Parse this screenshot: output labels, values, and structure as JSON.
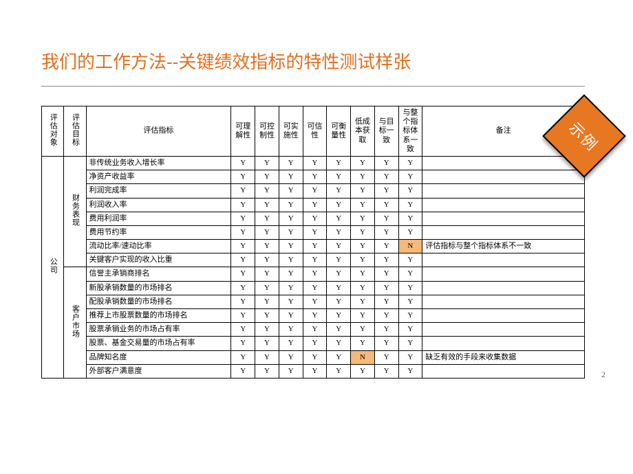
{
  "title": "我们的工作方法--关键绩效指标的特性测试样张",
  "badge": "示例",
  "pagenum": "2",
  "headers": {
    "obj": "评估对象",
    "dim": "评估目标",
    "ind": "评估指标",
    "c1": "可理解性",
    "c2": "可控制性",
    "c3": "可实施性",
    "c4": "可信性",
    "c5": "可衡量性",
    "c6": "低成本获取",
    "c7": "与目标一致",
    "c8": "与整个指标体系一致",
    "note": "备注"
  },
  "obj_label": "公司",
  "dims": {
    "fin": "财务表现",
    "cust": "客户市场"
  },
  "rows": [
    {
      "dim": "fin",
      "ind": "非传统业务收入增长率",
      "v": [
        "Y",
        "Y",
        "Y",
        "Y",
        "Y",
        "Y",
        "Y",
        "Y"
      ],
      "hl": null,
      "note": ""
    },
    {
      "dim": "fin",
      "ind": "净资产收益率",
      "v": [
        "Y",
        "Y",
        "Y",
        "Y",
        "Y",
        "Y",
        "Y",
        "Y"
      ],
      "hl": null,
      "note": ""
    },
    {
      "dim": "fin",
      "ind": "利润完成率",
      "v": [
        "Y",
        "Y",
        "Y",
        "Y",
        "Y",
        "Y",
        "Y",
        "Y"
      ],
      "hl": null,
      "note": ""
    },
    {
      "dim": "fin",
      "ind": "利润收入率",
      "v": [
        "Y",
        "Y",
        "Y",
        "Y",
        "Y",
        "Y",
        "Y",
        "Y"
      ],
      "hl": null,
      "note": ""
    },
    {
      "dim": "fin",
      "ind": "费用利润率",
      "v": [
        "Y",
        "Y",
        "Y",
        "Y",
        "Y",
        "Y",
        "Y",
        "Y"
      ],
      "hl": null,
      "note": ""
    },
    {
      "dim": "fin",
      "ind": "费用节约率",
      "v": [
        "Y",
        "Y",
        "Y",
        "Y",
        "Y",
        "Y",
        "Y",
        "Y"
      ],
      "hl": null,
      "note": ""
    },
    {
      "dim": "fin",
      "ind": "流动比率/速动比率",
      "v": [
        "Y",
        "Y",
        "Y",
        "Y",
        "Y",
        "Y",
        "Y",
        "N"
      ],
      "hl": 7,
      "note": "评估指标与整个指标体系不一致"
    },
    {
      "dim": "fin",
      "ind": "关键客户实现的收入比重",
      "v": [
        "Y",
        "Y",
        "Y",
        "Y",
        "Y",
        "Y",
        "Y",
        "Y"
      ],
      "hl": null,
      "note": ""
    },
    {
      "dim": "cust",
      "ind": "信誉主承销商排名",
      "v": [
        "Y",
        "Y",
        "Y",
        "Y",
        "Y",
        "Y",
        "Y",
        "Y"
      ],
      "hl": null,
      "note": ""
    },
    {
      "dim": "cust",
      "ind": "新股承销数量的市场排名",
      "v": [
        "Y",
        "Y",
        "Y",
        "Y",
        "Y",
        "Y",
        "Y",
        "Y"
      ],
      "hl": null,
      "note": ""
    },
    {
      "dim": "cust",
      "ind": "配股承销数量的市场排名",
      "v": [
        "Y",
        "Y",
        "Y",
        "Y",
        "Y",
        "Y",
        "Y",
        "Y"
      ],
      "hl": null,
      "note": ""
    },
    {
      "dim": "cust",
      "ind": "推荐上市股票数量的市场排名",
      "v": [
        "Y",
        "Y",
        "Y",
        "Y",
        "Y",
        "Y",
        "Y",
        "Y"
      ],
      "hl": null,
      "note": ""
    },
    {
      "dim": "cust",
      "ind": "股票承销业务的市场占有率",
      "v": [
        "Y",
        "Y",
        "Y",
        "Y",
        "Y",
        "Y",
        "Y",
        "Y"
      ],
      "hl": null,
      "note": ""
    },
    {
      "dim": "cust",
      "ind": "股票、基金交易量的市场占有率",
      "v": [
        "Y",
        "Y",
        "Y",
        "Y",
        "Y",
        "Y",
        "Y",
        "Y"
      ],
      "hl": null,
      "note": ""
    },
    {
      "dim": "cust",
      "ind": "品牌知名度",
      "v": [
        "Y",
        "Y",
        "Y",
        "Y",
        "Y",
        "N",
        "Y",
        "Y"
      ],
      "hl": 5,
      "note": "缺乏有效的手段来收集数据"
    },
    {
      "dim": "cust",
      "ind": "外部客户满意度",
      "v": [
        "Y",
        "Y",
        "Y",
        "Y",
        "Y",
        "Y",
        "Y",
        "Y"
      ],
      "hl": null,
      "note": ""
    }
  ],
  "counts": {
    "fin": 8,
    "cust": 8,
    "total": 16
  },
  "colors": {
    "title": "#e07020",
    "badge_bg": "#e87722",
    "highlight": "#f8b878"
  }
}
